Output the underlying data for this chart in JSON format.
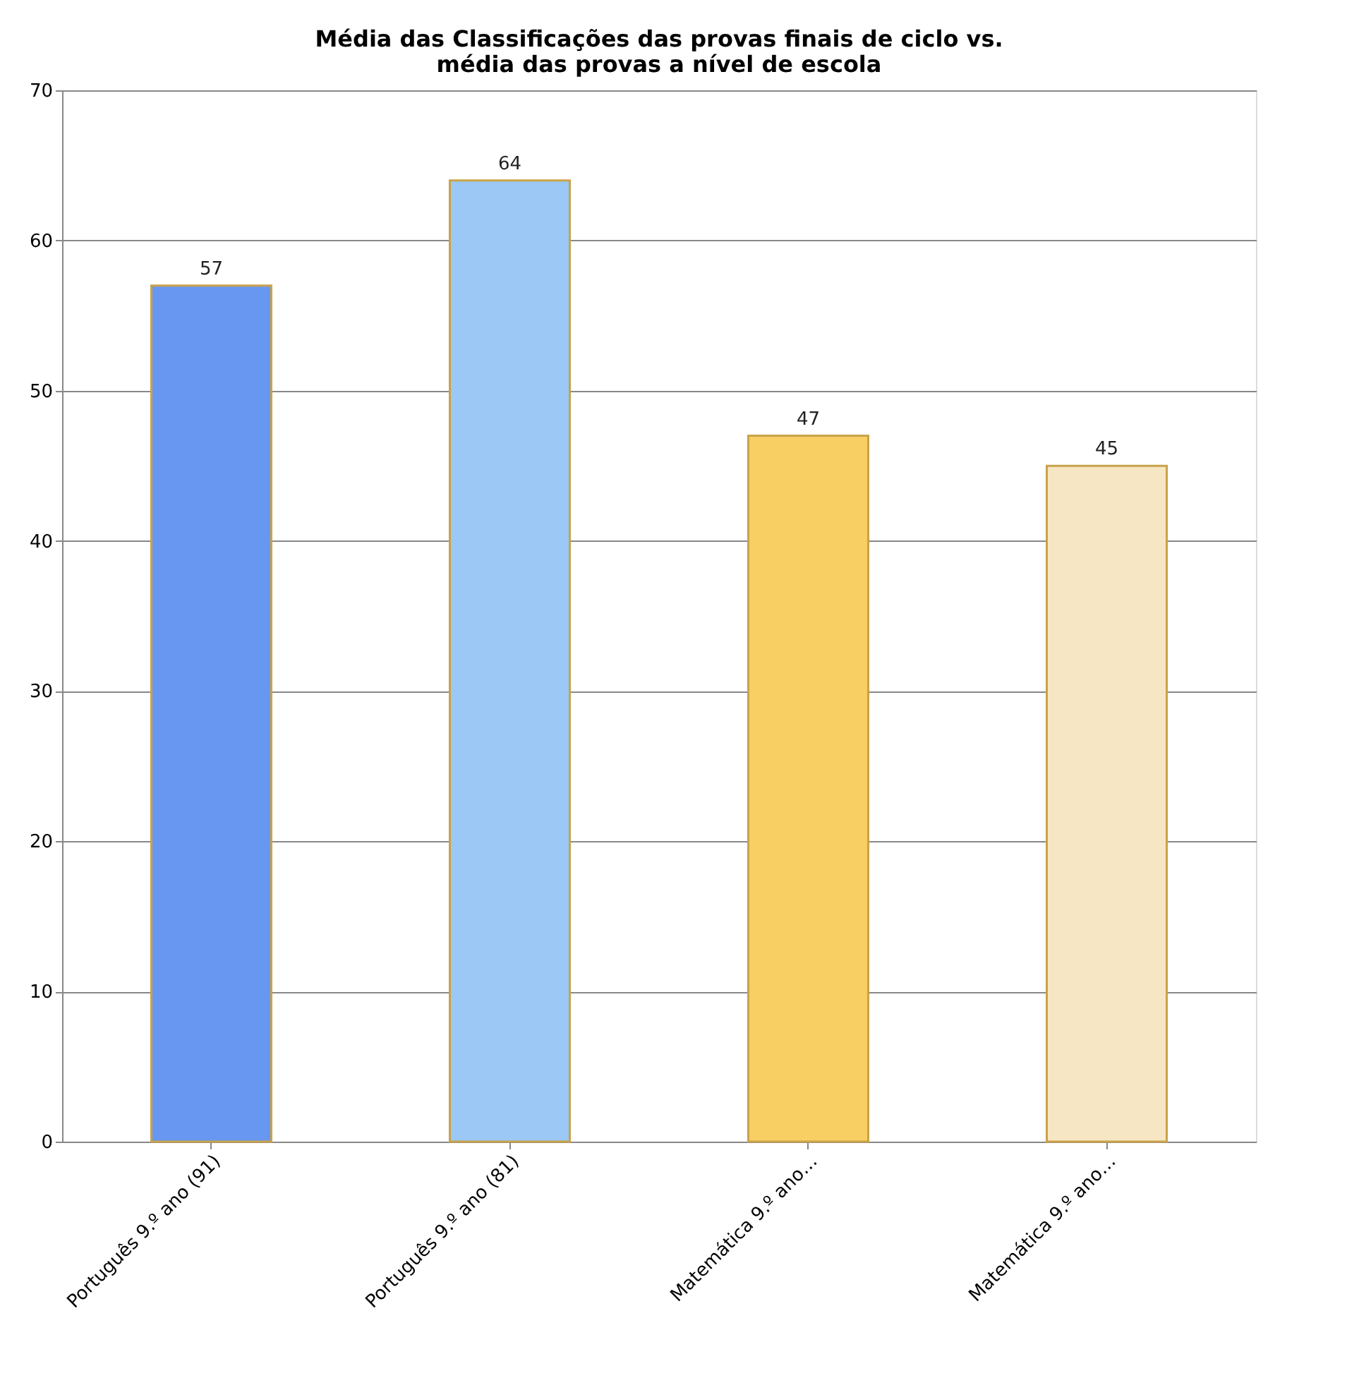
{
  "chart_data": {
    "type": "bar",
    "title": "Média das Classificações das provas finais de ciclo vs. média das provas a nível de escola",
    "categories": [
      "Português 9.º ano (91)",
      "Português 9.º ano (81)",
      "Matemática 9.º ano…",
      "Matemática 9.º ano…"
    ],
    "values": [
      57,
      64,
      47,
      45
    ],
    "colors": [
      "#6797f0",
      "#9cc8f5",
      "#f8cf63",
      "#f6e6c3"
    ],
    "ylim": [
      0,
      70
    ],
    "yticks": [
      0,
      10,
      20,
      30,
      40,
      50,
      60,
      70
    ],
    "grid": "y",
    "data_labels": true
  }
}
